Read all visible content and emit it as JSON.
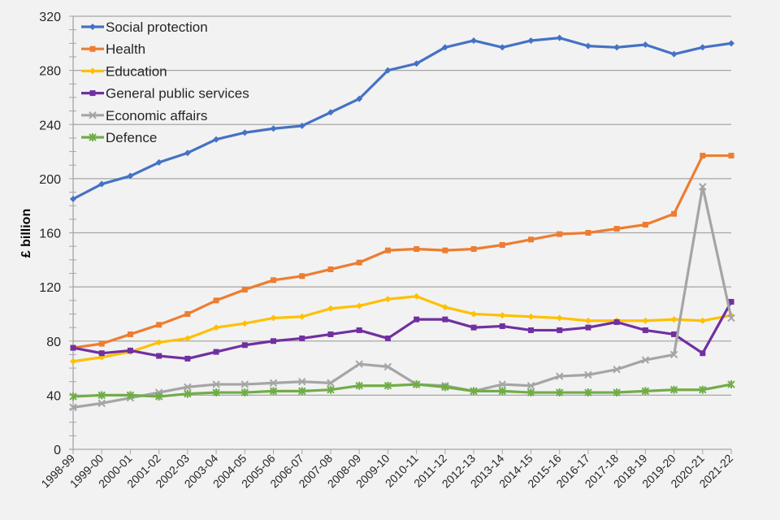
{
  "chart_data": {
    "type": "line",
    "title": "",
    "xlabel": "",
    "ylabel": "£ billion",
    "ylim": [
      0,
      320
    ],
    "yticks": [
      0,
      40,
      80,
      120,
      160,
      200,
      240,
      280,
      320
    ],
    "grid": true,
    "legend_position": "top-left",
    "categories": [
      "1998-99",
      "1999-00",
      "2000-01",
      "2001-02",
      "2002-03",
      "2003-04",
      "2004-05",
      "2005-06",
      "2006-07",
      "2007-08",
      "2008-09",
      "2009-10",
      "2010-11",
      "2011-12",
      "2012-13",
      "2013-14",
      "2014-15",
      "2015-16",
      "2016-17",
      "2017-18",
      "2018-19",
      "2019-20",
      "2020-21",
      "2021-22"
    ],
    "series": [
      {
        "name": "Social protection",
        "color": "#4472c4",
        "marker": "diamond",
        "values": [
          185,
          196,
          202,
          212,
          219,
          229,
          234,
          237,
          239,
          249,
          259,
          280,
          285,
          297,
          302,
          297,
          302,
          304,
          298,
          297,
          299,
          292,
          297,
          300
        ]
      },
      {
        "name": "Health",
        "color": "#ed7d31",
        "marker": "square",
        "values": [
          75,
          78,
          85,
          92,
          100,
          110,
          118,
          125,
          128,
          133,
          138,
          147,
          148,
          147,
          148,
          151,
          155,
          159,
          160,
          163,
          166,
          174,
          217,
          217
        ]
      },
      {
        "name": "Education",
        "color": "#ffc000",
        "marker": "diamond",
        "values": [
          65,
          68,
          72,
          79,
          82,
          90,
          93,
          97,
          98,
          104,
          106,
          111,
          113,
          105,
          100,
          99,
          98,
          97,
          95,
          95,
          95,
          96,
          95,
          99
        ]
      },
      {
        "name": "General public services",
        "color": "#7030a0",
        "marker": "square",
        "values": [
          75,
          71,
          73,
          69,
          67,
          72,
          77,
          80,
          82,
          85,
          88,
          82,
          96,
          96,
          90,
          91,
          88,
          88,
          90,
          94,
          88,
          85,
          71,
          109
        ]
      },
      {
        "name": "Economic affairs",
        "color": "#a5a5a5",
        "marker": "x",
        "values": [
          31,
          34,
          38,
          42,
          46,
          48,
          48,
          49,
          50,
          49,
          63,
          61,
          48,
          47,
          43,
          48,
          47,
          54,
          55,
          59,
          66,
          70,
          194,
          97
        ]
      },
      {
        "name": "Defence",
        "color": "#70ad47",
        "marker": "star",
        "values": [
          39,
          40,
          40,
          39,
          41,
          42,
          42,
          43,
          43,
          44,
          47,
          47,
          48,
          46,
          43,
          43,
          42,
          42,
          42,
          42,
          43,
          44,
          44,
          48
        ]
      }
    ]
  }
}
